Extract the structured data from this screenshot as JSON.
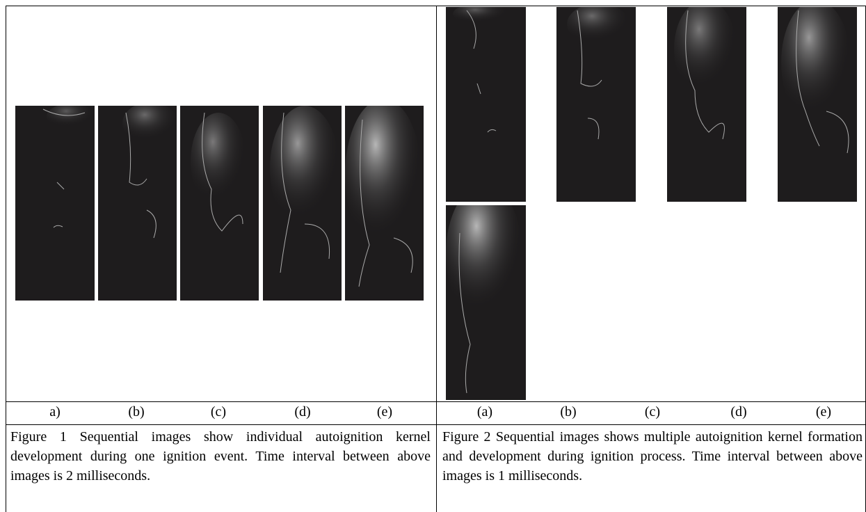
{
  "figure1": {
    "labels": [
      "a)",
      "(b)",
      "(c)",
      "(d)",
      "(e)"
    ],
    "caption": "Figure 1 Sequential images show individual autoignition kernel development during one ignition event. Time interval between above images is 2 milliseconds."
  },
  "figure2": {
    "labels": [
      "(a)",
      "(b)",
      "(c)",
      "(d)",
      "(e)"
    ],
    "caption": "Figure 2 Sequential images shows multiple autoignition kernel formation and development during ignition process. Time interval between above images is 1 milliseconds."
  }
}
